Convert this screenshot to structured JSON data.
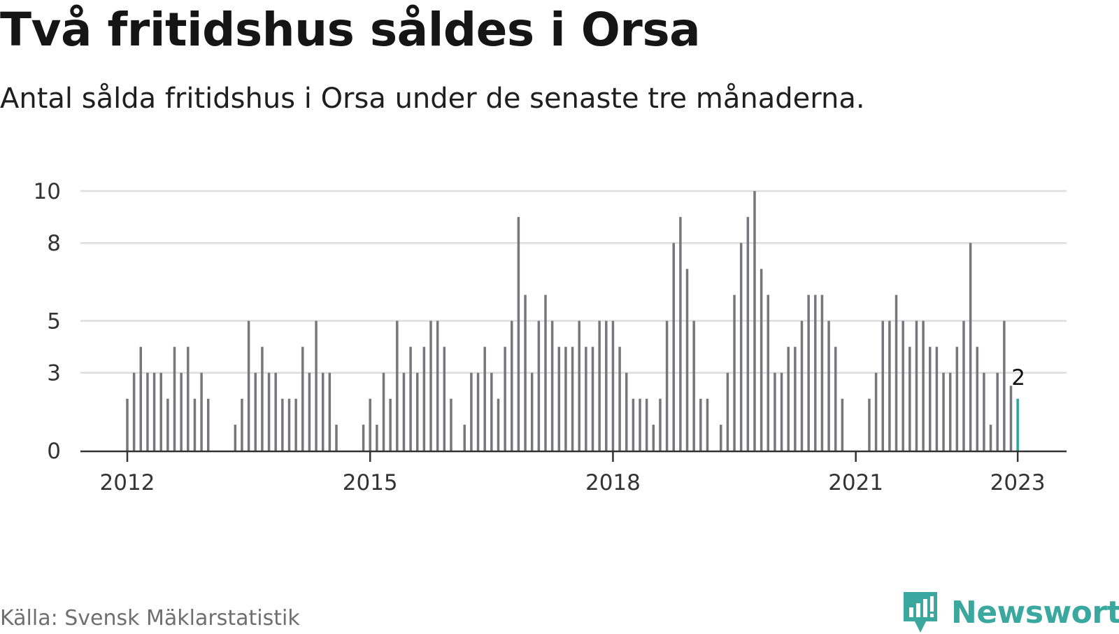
{
  "title": "Två fritidshus såldes i Orsa",
  "subtitle": "Antal sålda fritidshus i Orsa under de senaste tre månaderna.",
  "source": "Källa: Svensk Mäklarstatistik",
  "brand": "Newsworthy",
  "colors": {
    "bar": "#77767c",
    "highlight": "#2aa79b",
    "grid": "#dddddd",
    "axis": "#333333",
    "brand": "#3aa89e"
  },
  "chart_data": {
    "type": "bar",
    "x_unit": "month",
    "x_start": "2012-01",
    "ylim": [
      0,
      10
    ],
    "y_ticks": [
      0,
      3,
      5,
      8,
      10
    ],
    "x_ticks": [
      "2012",
      "2015",
      "2018",
      "2021",
      "2023"
    ],
    "grid": true,
    "values": [
      2,
      3,
      4,
      3,
      3,
      3,
      2,
      4,
      3,
      4,
      2,
      3,
      2,
      null,
      null,
      null,
      1,
      2,
      5,
      3,
      4,
      3,
      3,
      2,
      2,
      2,
      4,
      3,
      5,
      3,
      3,
      1,
      null,
      null,
      null,
      1,
      2,
      1,
      3,
      2,
      5,
      3,
      4,
      3,
      4,
      5,
      5,
      4,
      2,
      null,
      1,
      3,
      3,
      4,
      3,
      2,
      4,
      5,
      9,
      6,
      3,
      5,
      6,
      5,
      4,
      4,
      4,
      5,
      4,
      4,
      5,
      5,
      5,
      4,
      3,
      2,
      2,
      2,
      1,
      2,
      5,
      8,
      9,
      7,
      5,
      2,
      2,
      null,
      1,
      3,
      6,
      8,
      9,
      10,
      7,
      6,
      3,
      3,
      4,
      4,
      5,
      6,
      6,
      6,
      5,
      4,
      2,
      null,
      null,
      null,
      2,
      3,
      5,
      5,
      6,
      5,
      4,
      5,
      5,
      4,
      4,
      3,
      3,
      4,
      5,
      8,
      4,
      3,
      1,
      3,
      5,
      2.5,
      2
    ],
    "highlight_last": true,
    "last_label": "2"
  }
}
